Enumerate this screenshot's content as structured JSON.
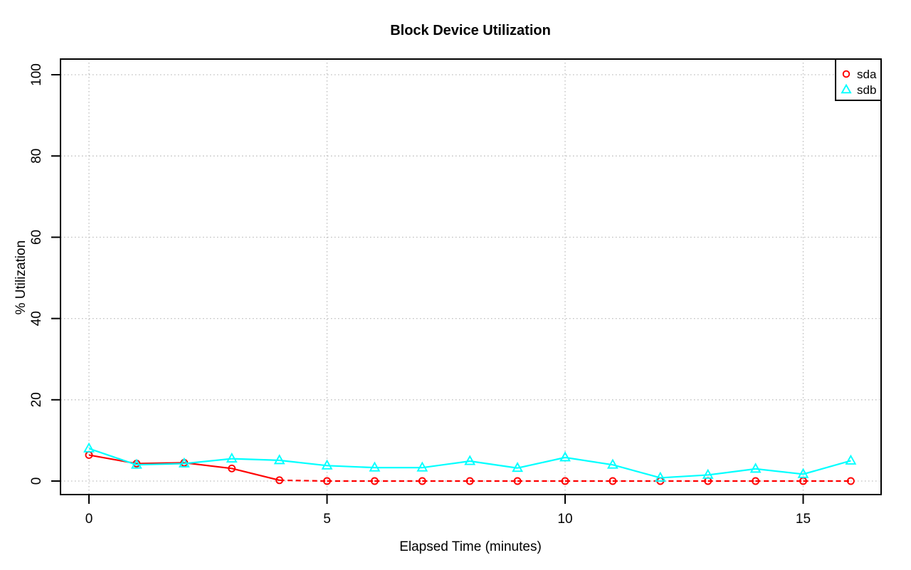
{
  "chart_data": {
    "type": "line",
    "title": "Block Device Utilization",
    "xlabel": "Elapsed Time (minutes)",
    "ylabel": "% Utilization",
    "x": [
      0,
      1,
      2,
      3,
      4,
      5,
      6,
      7,
      8,
      9,
      10,
      11,
      12,
      13,
      14,
      15,
      16
    ],
    "series": [
      {
        "name": "sda",
        "color": "#ff0000",
        "marker": "circle",
        "line": "solid-then-dashed",
        "dash_from_segment": 4,
        "values": [
          6.4,
          4.3,
          4.5,
          3.1,
          0.2,
          0,
          0,
          0,
          0,
          0,
          0,
          0,
          0,
          0,
          0,
          0,
          0
        ]
      },
      {
        "name": "sdb",
        "color": "#00ffff",
        "marker": "triangle",
        "line": "solid",
        "values": [
          8.0,
          4.0,
          4.3,
          5.5,
          5.1,
          3.8,
          3.3,
          3.3,
          4.9,
          3.2,
          5.8,
          4.0,
          0.8,
          1.5,
          3.0,
          1.7,
          5.0
        ]
      }
    ],
    "xlim": [
      0,
      16
    ],
    "ylim": [
      0,
      100
    ],
    "xticks": [
      0,
      5,
      10,
      15
    ],
    "yticks": [
      0,
      20,
      40,
      60,
      80,
      100
    ],
    "grid": {
      "style": "dotted",
      "color": "#bdbdbd"
    },
    "legend": {
      "position": "top-right",
      "entries": [
        "sda",
        "sdb"
      ]
    },
    "background": "#ffffff",
    "axis_color": "#000000"
  }
}
